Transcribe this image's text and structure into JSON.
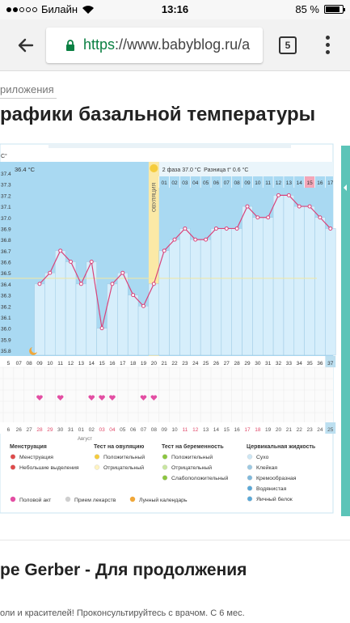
{
  "status_bar": {
    "carrier": "Билайн",
    "time": "13:16",
    "battery": "85 %"
  },
  "browser": {
    "url_scheme": "https",
    "url_rest": "://www.babyblog.ru/a",
    "tab_count": "5"
  },
  "page": {
    "breadcrumb": "риложения",
    "title": "рафики базальной температуры",
    "promo_title": "ре Gerber - Для продолжения",
    "note": "оли и красителей! Проконсультируйтесь с врачом. С 6 мес."
  },
  "chart": {
    "unit_label": "C°",
    "cover_line_label": "36.4 °C",
    "ovulation_label": "ОВУЛЯЦИЯ",
    "phase_label": "2 фаза",
    "phase_value": "37.0 °C",
    "diff_label": "Разница t°",
    "diff_value": "0.6 °C",
    "month_label": "Август",
    "y_ticks": [
      "37.4",
      "37.3",
      "37.2",
      "37.1",
      "37.0",
      "36.9",
      "36.8",
      "36.7",
      "36.6",
      "36.5",
      "36.4",
      "36.3",
      "36.2",
      "36.1",
      "36.0",
      "35.9",
      "35.8"
    ],
    "cycle_days": [
      "5",
      "07",
      "08",
      "09",
      "10",
      "11",
      "12",
      "13",
      "14",
      "15",
      "16",
      "17",
      "18",
      "19",
      "20",
      "21",
      "22",
      "23",
      "24",
      "25",
      "26",
      "27",
      "28",
      "29",
      "30",
      "31",
      "32",
      "33",
      "34",
      "35",
      "36",
      "37"
    ],
    "phase_days": [
      "01",
      "02",
      "03",
      "04",
      "05",
      "06",
      "07",
      "08",
      "09",
      "10",
      "11",
      "12",
      "13",
      "14",
      "15",
      "16",
      "17"
    ],
    "dates": [
      "6",
      "26",
      "27",
      "28",
      "29",
      "30",
      "31",
      "01",
      "02",
      "03",
      "04",
      "05",
      "06",
      "07",
      "08",
      "09",
      "10",
      "11",
      "12",
      "13",
      "14",
      "15",
      "16",
      "17",
      "18",
      "19",
      "20",
      "21",
      "22",
      "23",
      "24",
      "25"
    ],
    "date_colors": [
      "#555",
      "#555",
      "#555",
      "#e04a6a",
      "#e04a6a",
      "#555",
      "#555",
      "#555",
      "#555",
      "#e04a6a",
      "#e04a6a",
      "#555",
      "#555",
      "#555",
      "#555",
      "#555",
      "#555",
      "#e04a6a",
      "#e04a6a",
      "#555",
      "#555",
      "#555",
      "#555",
      "#e04a6a",
      "#e04a6a",
      "#555",
      "#555",
      "#555",
      "#555",
      "#555",
      "#555",
      "#555"
    ],
    "temps": [
      null,
      null,
      null,
      36.4,
      36.5,
      36.7,
      36.6,
      36.4,
      36.6,
      36.0,
      36.4,
      36.5,
      36.3,
      36.2,
      36.4,
      36.7,
      36.8,
      36.9,
      36.8,
      36.8,
      36.9,
      36.9,
      36.9,
      37.1,
      37.0,
      37.0,
      37.2,
      37.2,
      37.1,
      37.1,
      37.0,
      36.9
    ],
    "sex_days": [
      3,
      5,
      8,
      9,
      10,
      13,
      14
    ],
    "highlight_phase_day": "15",
    "legend": {
      "menstruation": {
        "title": "Менструация",
        "items": [
          "Менструация",
          "Небольшие выделения"
        ]
      },
      "ovulation_test": {
        "title": "Тест на овуляцию",
        "items": [
          "Положительный",
          "Отрицательный"
        ]
      },
      "pregnancy_test": {
        "title": "Тест на беременность",
        "items": [
          "Положительный",
          "Отрицательный",
          "Слабоположительный"
        ]
      },
      "cervical": {
        "title": "Цервикальная жидкость",
        "items": [
          "Сухо",
          "Клейкая",
          "Кремообразная",
          "Водянистая",
          "Яичный белок"
        ]
      },
      "bottom": [
        "Половой акт",
        "Прием лекарств",
        "Лунный календарь"
      ]
    },
    "colors": {
      "sky": "#a9d9f2",
      "bar": "#d6eefb",
      "ovulation": "#fbe9a6",
      "line": "#d9437a",
      "accent": "#5cc4b8"
    }
  }
}
